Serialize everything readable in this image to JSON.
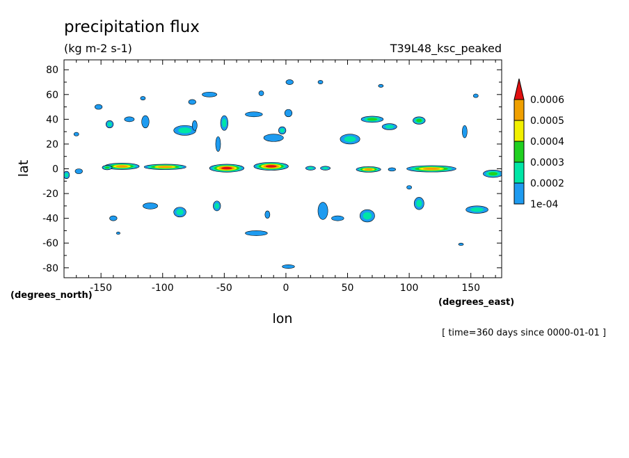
{
  "chart_data": {
    "type": "heatmap",
    "title": "precipitation flux",
    "units": "(kg m-2 s-1)",
    "run_label": "T39L48_ksc_peaked",
    "xlabel": "lon",
    "ylabel": "lat",
    "x_units_label": "(degrees_east)",
    "y_units_label": "(degrees_north)",
    "time_label": "[ time=360 days since 0000-01-01 ]",
    "xlim": [
      -180,
      175
    ],
    "ylim": [
      -88,
      88
    ],
    "x_ticks": [
      {
        "value": -150,
        "label": "-150"
      },
      {
        "value": -100,
        "label": "-100"
      },
      {
        "value": -50,
        "label": "-50"
      },
      {
        "value": 0,
        "label": "0"
      },
      {
        "value": 50,
        "label": "50"
      },
      {
        "value": 100,
        "label": "100"
      },
      {
        "value": 150,
        "label": "150"
      }
    ],
    "y_ticks": [
      {
        "value": 80,
        "label": "80"
      },
      {
        "value": 60,
        "label": "60"
      },
      {
        "value": 40,
        "label": "40"
      },
      {
        "value": 20,
        "label": "20"
      },
      {
        "value": 0,
        "label": "0"
      },
      {
        "value": -20,
        "label": "-20"
      },
      {
        "value": -40,
        "label": "-40"
      },
      {
        "value": -60,
        "label": "-60"
      },
      {
        "value": -80,
        "label": "-80"
      }
    ],
    "colorbar": {
      "levels": [
        {
          "value": 0.0001,
          "label": "1e-04",
          "color": "#1e9bf0"
        },
        {
          "value": 0.0002,
          "label": "0.0002",
          "color": "#00e6a6"
        },
        {
          "value": 0.0003,
          "label": "0.0003",
          "color": "#20d020"
        },
        {
          "value": 0.0004,
          "label": "0.0004",
          "color": "#f2f000"
        },
        {
          "value": 0.0005,
          "label": "0.0005",
          "color": "#f0a000"
        },
        {
          "value": 0.0006,
          "label": "0.0006",
          "color": "#e01010"
        }
      ]
    },
    "features": [
      {
        "lon": -133,
        "lat": 2,
        "rx": 14,
        "ry": 2.6,
        "level": 5
      },
      {
        "lon": -145,
        "lat": 1,
        "rx": 4,
        "ry": 1.8,
        "level": 3
      },
      {
        "lon": -168,
        "lat": -2,
        "rx": 3,
        "ry": 2,
        "level": 1
      },
      {
        "lon": -178,
        "lat": -5,
        "rx": 2.5,
        "ry": 3,
        "level": 2
      },
      {
        "lon": -98,
        "lat": 1.5,
        "rx": 17,
        "ry": 2.2,
        "level": 5
      },
      {
        "lon": -48,
        "lat": 0.5,
        "rx": 14,
        "ry": 3.2,
        "level": 6
      },
      {
        "lon": -12,
        "lat": 2,
        "rx": 14,
        "ry": 3.2,
        "level": 6
      },
      {
        "lon": 20,
        "lat": 0.5,
        "rx": 4,
        "ry": 1.6,
        "level": 2
      },
      {
        "lon": 32,
        "lat": 0.5,
        "rx": 4,
        "ry": 1.6,
        "level": 2
      },
      {
        "lon": 67,
        "lat": -0.5,
        "rx": 10,
        "ry": 2.2,
        "level": 5
      },
      {
        "lon": 86,
        "lat": -0.5,
        "rx": 3,
        "ry": 1.4,
        "level": 1
      },
      {
        "lon": 118,
        "lat": 0,
        "rx": 20,
        "ry": 2.6,
        "level": 5
      },
      {
        "lon": 168,
        "lat": -4,
        "rx": 8,
        "ry": 3,
        "level": 3
      },
      {
        "lon": -143,
        "lat": 36,
        "rx": 3,
        "ry": 3,
        "level": 2
      },
      {
        "lon": -127,
        "lat": 40,
        "rx": 4,
        "ry": 2,
        "level": 1
      },
      {
        "lon": -114,
        "lat": 38,
        "rx": 3,
        "ry": 5,
        "level": 1
      },
      {
        "lon": -82,
        "lat": 31,
        "rx": 9,
        "ry": 4,
        "level": 2
      },
      {
        "lon": -74,
        "lat": 35,
        "rx": 2,
        "ry": 4,
        "level": 1
      },
      {
        "lon": -55,
        "lat": 20,
        "rx": 2,
        "ry": 6,
        "level": 1
      },
      {
        "lon": -50,
        "lat": 37,
        "rx": 3,
        "ry": 6,
        "level": 2
      },
      {
        "lon": -26,
        "lat": 44,
        "rx": 7,
        "ry": 2,
        "level": 1
      },
      {
        "lon": -10,
        "lat": 25,
        "rx": 8,
        "ry": 3,
        "level": 1
      },
      {
        "lon": -3,
        "lat": 31,
        "rx": 3,
        "ry": 3,
        "level": 2
      },
      {
        "lon": 2,
        "lat": 45,
        "rx": 3,
        "ry": 3,
        "level": 1
      },
      {
        "lon": 52,
        "lat": 24,
        "rx": 8,
        "ry": 4,
        "level": 2
      },
      {
        "lon": 70,
        "lat": 40,
        "rx": 9,
        "ry": 2.5,
        "level": 3
      },
      {
        "lon": 84,
        "lat": 34,
        "rx": 6,
        "ry": 2.5,
        "level": 2
      },
      {
        "lon": 108,
        "lat": 39,
        "rx": 5,
        "ry": 3,
        "level": 3
      },
      {
        "lon": 145,
        "lat": 30,
        "rx": 2,
        "ry": 5,
        "level": 1
      },
      {
        "lon": -152,
        "lat": 50,
        "rx": 3,
        "ry": 2,
        "level": 1
      },
      {
        "lon": -170,
        "lat": 28,
        "rx": 2,
        "ry": 1.5,
        "level": 1
      },
      {
        "lon": -116,
        "lat": 57,
        "rx": 2,
        "ry": 1.5,
        "level": 1
      },
      {
        "lon": -76,
        "lat": 54,
        "rx": 3,
        "ry": 2,
        "level": 1
      },
      {
        "lon": -62,
        "lat": 60,
        "rx": 6,
        "ry": 2,
        "level": 1
      },
      {
        "lon": -20,
        "lat": 61,
        "rx": 2,
        "ry": 2,
        "level": 1
      },
      {
        "lon": 3,
        "lat": 70,
        "rx": 3,
        "ry": 2,
        "level": 1
      },
      {
        "lon": 28,
        "lat": 70,
        "rx": 2,
        "ry": 1.5,
        "level": 1
      },
      {
        "lon": 77,
        "lat": 67,
        "rx": 2,
        "ry": 1.2,
        "level": 1
      },
      {
        "lon": 154,
        "lat": 59,
        "rx": 2,
        "ry": 1.5,
        "level": 1
      },
      {
        "lon": -140,
        "lat": -40,
        "rx": 3,
        "ry": 2,
        "level": 1
      },
      {
        "lon": -110,
        "lat": -30,
        "rx": 6,
        "ry": 2.5,
        "level": 1
      },
      {
        "lon": -86,
        "lat": -35,
        "rx": 5,
        "ry": 4,
        "level": 2
      },
      {
        "lon": -56,
        "lat": -30,
        "rx": 3,
        "ry": 4,
        "level": 2
      },
      {
        "lon": -24,
        "lat": -52,
        "rx": 9,
        "ry": 2,
        "level": 1
      },
      {
        "lon": -15,
        "lat": -37,
        "rx": 2,
        "ry": 3,
        "level": 1
      },
      {
        "lon": 30,
        "lat": -34,
        "rx": 4,
        "ry": 7,
        "level": 1
      },
      {
        "lon": 42,
        "lat": -40,
        "rx": 5,
        "ry": 2,
        "level": 1
      },
      {
        "lon": 66,
        "lat": -38,
        "rx": 6,
        "ry": 5,
        "level": 2
      },
      {
        "lon": 108,
        "lat": -28,
        "rx": 4,
        "ry": 5,
        "level": 2
      },
      {
        "lon": 155,
        "lat": -33,
        "rx": 9,
        "ry": 3,
        "level": 2
      },
      {
        "lon": 2,
        "lat": -79,
        "rx": 5,
        "ry": 1.5,
        "level": 1
      },
      {
        "lon": 142,
        "lat": -61,
        "rx": 2,
        "ry": 1,
        "level": 1
      },
      {
        "lon": -136,
        "lat": -52,
        "rx": 1.5,
        "ry": 1,
        "level": 1
      },
      {
        "lon": 100,
        "lat": -15,
        "rx": 2,
        "ry": 1.5,
        "level": 1
      }
    ]
  }
}
